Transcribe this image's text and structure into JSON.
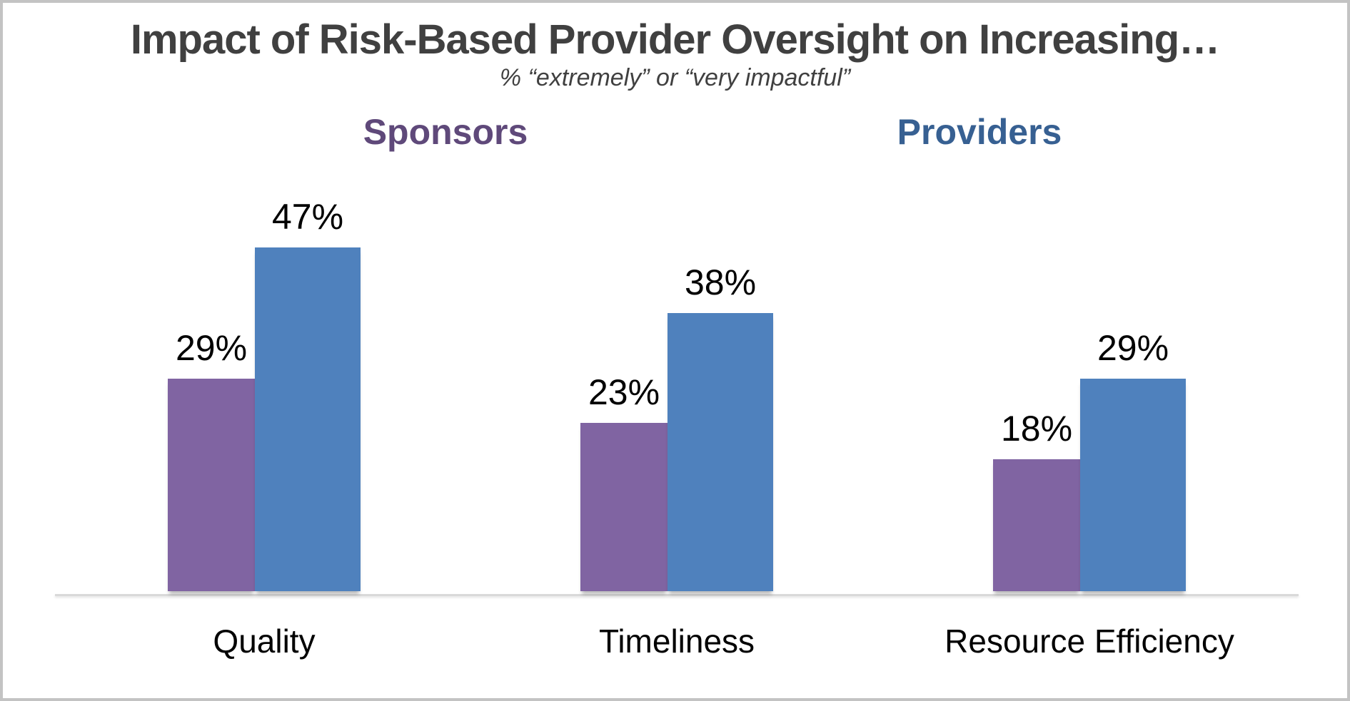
{
  "title": "Impact of Risk-Based Provider Oversight on Increasing…",
  "subtitle": "% “extremely” or “very impactful”",
  "series_headers": {
    "sponsors": "Sponsors",
    "providers": "Providers"
  },
  "colors": {
    "sponsors_bar": "#8064A2",
    "providers_bar": "#4F81BD",
    "sponsors_header_text": "#5F497A",
    "providers_header_text": "#376092",
    "title_text": "#404040",
    "data_label_text": "#000000",
    "axis_line": "#D9D9D9",
    "canvas_border": "#C3C3C3"
  },
  "chart_data": {
    "type": "bar",
    "title": "Impact of Risk-Based Provider Oversight on Increasing…",
    "subtitle": "% “extremely” or “very impactful”",
    "categories": [
      "Quality",
      "Timeliness",
      "Resource Efficiency"
    ],
    "series": [
      {
        "name": "Sponsors",
        "color": "#8064A2",
        "values": [
          29,
          23,
          18
        ],
        "labels": [
          "29%",
          "23%",
          "18%"
        ]
      },
      {
        "name": "Providers",
        "color": "#4F81BD",
        "values": [
          47,
          38,
          29
        ],
        "labels": [
          "47%",
          "38%",
          "29%"
        ]
      }
    ],
    "ylim": [
      0,
      50
    ],
    "grid": false,
    "y_axis_shown": false,
    "legend_position": "inline-headers-above-plot",
    "data_labels": "above-bars"
  }
}
